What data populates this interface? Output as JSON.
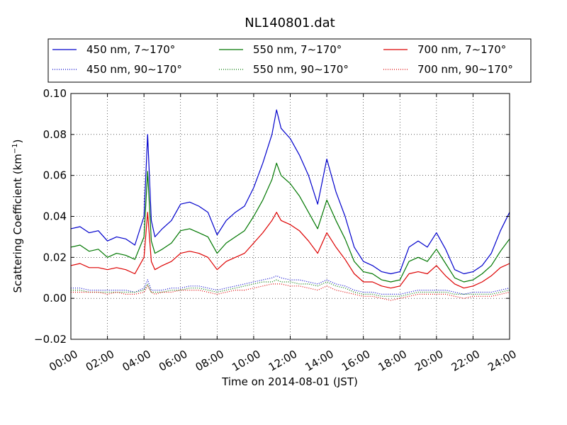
{
  "chart_data": {
    "type": "line",
    "title": "NL140801.dat",
    "xlabel": "Time on 2014-08-01 (JST)",
    "ylabel_main": "Scattering Coefficient (km",
    "ylabel_sup": "−1",
    "ylabel_close": ")",
    "xlim": [
      0,
      24
    ],
    "ylim": [
      -0.02,
      0.1
    ],
    "grid": true,
    "legend_position": "top (above plot), 3 columns",
    "x_ticks": [
      0,
      2,
      4,
      6,
      8,
      10,
      12,
      14,
      16,
      18,
      20,
      22,
      24
    ],
    "x_tick_labels": [
      "00:00",
      "02:00",
      "04:00",
      "06:00",
      "08:00",
      "10:00",
      "12:00",
      "14:00",
      "16:00",
      "18:00",
      "20:00",
      "22:00",
      "24:00"
    ],
    "y_ticks": [
      -0.02,
      0.0,
      0.02,
      0.04,
      0.06,
      0.08,
      0.1
    ],
    "y_tick_labels": [
      "−0.02",
      "0.00",
      "0.02",
      "0.04",
      "0.06",
      "0.08",
      "0.10"
    ],
    "x": [
      0,
      0.5,
      1,
      1.5,
      2,
      2.5,
      3,
      3.5,
      4,
      4.2,
      4.4,
      4.6,
      5,
      5.5,
      6,
      6.5,
      7,
      7.5,
      8,
      8.5,
      9,
      9.5,
      10,
      10.5,
      11,
      11.25,
      11.5,
      12,
      12.5,
      13,
      13.5,
      14,
      14.5,
      15,
      15.5,
      16,
      16.5,
      17,
      17.5,
      18,
      18.5,
      19,
      19.5,
      20,
      20.5,
      21,
      21.5,
      22,
      22.5,
      23,
      23.5,
      24
    ],
    "series": [
      {
        "name": "450 nm, 7∼170°",
        "color": "#0000cc",
        "style": "solid",
        "values": [
          0.034,
          0.035,
          0.032,
          0.033,
          0.028,
          0.03,
          0.029,
          0.026,
          0.04,
          0.08,
          0.038,
          0.03,
          0.034,
          0.038,
          0.046,
          0.047,
          0.045,
          0.042,
          0.031,
          0.038,
          0.042,
          0.045,
          0.054,
          0.066,
          0.08,
          0.092,
          0.083,
          0.078,
          0.07,
          0.06,
          0.046,
          0.068,
          0.052,
          0.04,
          0.025,
          0.018,
          0.016,
          0.013,
          0.012,
          0.013,
          0.025,
          0.028,
          0.025,
          0.032,
          0.024,
          0.014,
          0.012,
          0.013,
          0.016,
          0.022,
          0.033,
          0.042
        ]
      },
      {
        "name": "450 nm, 90∼170°",
        "color": "#0000cc",
        "style": "dotted",
        "values": [
          0.005,
          0.005,
          0.004,
          0.004,
          0.004,
          0.004,
          0.004,
          0.003,
          0.005,
          0.009,
          0.004,
          0.004,
          0.004,
          0.005,
          0.005,
          0.006,
          0.006,
          0.005,
          0.004,
          0.005,
          0.006,
          0.007,
          0.008,
          0.009,
          0.01,
          0.011,
          0.01,
          0.009,
          0.009,
          0.008,
          0.007,
          0.009,
          0.007,
          0.006,
          0.004,
          0.003,
          0.003,
          0.002,
          0.002,
          0.002,
          0.003,
          0.004,
          0.004,
          0.004,
          0.004,
          0.003,
          0.002,
          0.003,
          0.003,
          0.003,
          0.004,
          0.005
        ]
      },
      {
        "name": "550 nm, 7∼170°",
        "color": "#007700",
        "style": "solid",
        "values": [
          0.025,
          0.026,
          0.023,
          0.024,
          0.02,
          0.022,
          0.021,
          0.019,
          0.03,
          0.062,
          0.028,
          0.022,
          0.024,
          0.027,
          0.033,
          0.034,
          0.032,
          0.03,
          0.022,
          0.027,
          0.03,
          0.033,
          0.04,
          0.048,
          0.058,
          0.066,
          0.06,
          0.056,
          0.05,
          0.042,
          0.034,
          0.048,
          0.038,
          0.029,
          0.018,
          0.013,
          0.012,
          0.009,
          0.008,
          0.009,
          0.018,
          0.02,
          0.018,
          0.024,
          0.017,
          0.01,
          0.008,
          0.009,
          0.012,
          0.016,
          0.023,
          0.029
        ]
      },
      {
        "name": "550 nm, 90∼170°",
        "color": "#007700",
        "style": "dotted",
        "values": [
          0.004,
          0.004,
          0.003,
          0.003,
          0.003,
          0.003,
          0.003,
          0.003,
          0.004,
          0.007,
          0.003,
          0.003,
          0.003,
          0.004,
          0.004,
          0.005,
          0.005,
          0.004,
          0.003,
          0.004,
          0.005,
          0.006,
          0.007,
          0.008,
          0.008,
          0.009,
          0.008,
          0.008,
          0.007,
          0.007,
          0.006,
          0.008,
          0.006,
          0.005,
          0.003,
          0.002,
          0.002,
          0.001,
          0.001,
          0.001,
          0.002,
          0.003,
          0.003,
          0.003,
          0.003,
          0.002,
          0.002,
          0.002,
          0.002,
          0.002,
          0.003,
          0.004
        ]
      },
      {
        "name": "700 nm, 7∼170°",
        "color": "#dd0000",
        "style": "solid",
        "values": [
          0.016,
          0.017,
          0.015,
          0.015,
          0.014,
          0.015,
          0.014,
          0.012,
          0.02,
          0.042,
          0.018,
          0.014,
          0.016,
          0.018,
          0.022,
          0.023,
          0.022,
          0.02,
          0.014,
          0.018,
          0.02,
          0.022,
          0.027,
          0.032,
          0.038,
          0.042,
          0.038,
          0.036,
          0.033,
          0.028,
          0.022,
          0.032,
          0.025,
          0.019,
          0.012,
          0.008,
          0.008,
          0.006,
          0.005,
          0.006,
          0.012,
          0.013,
          0.012,
          0.016,
          0.011,
          0.007,
          0.005,
          0.006,
          0.008,
          0.011,
          0.015,
          0.017
        ]
      },
      {
        "name": "700 nm, 90∼170°",
        "color": "#dd0000",
        "style": "dotted",
        "values": [
          0.003,
          0.003,
          0.003,
          0.003,
          0.002,
          0.003,
          0.002,
          0.002,
          0.003,
          0.006,
          0.003,
          0.002,
          0.003,
          0.003,
          0.004,
          0.004,
          0.004,
          0.003,
          0.002,
          0.003,
          0.004,
          0.004,
          0.005,
          0.006,
          0.007,
          0.007,
          0.007,
          0.006,
          0.006,
          0.005,
          0.004,
          0.006,
          0.004,
          0.003,
          0.002,
          0.001,
          0.001,
          0.0,
          -0.001,
          0.0,
          0.001,
          0.002,
          0.002,
          0.002,
          0.002,
          0.001,
          0.0,
          0.001,
          0.001,
          0.001,
          0.002,
          0.003
        ]
      }
    ]
  }
}
